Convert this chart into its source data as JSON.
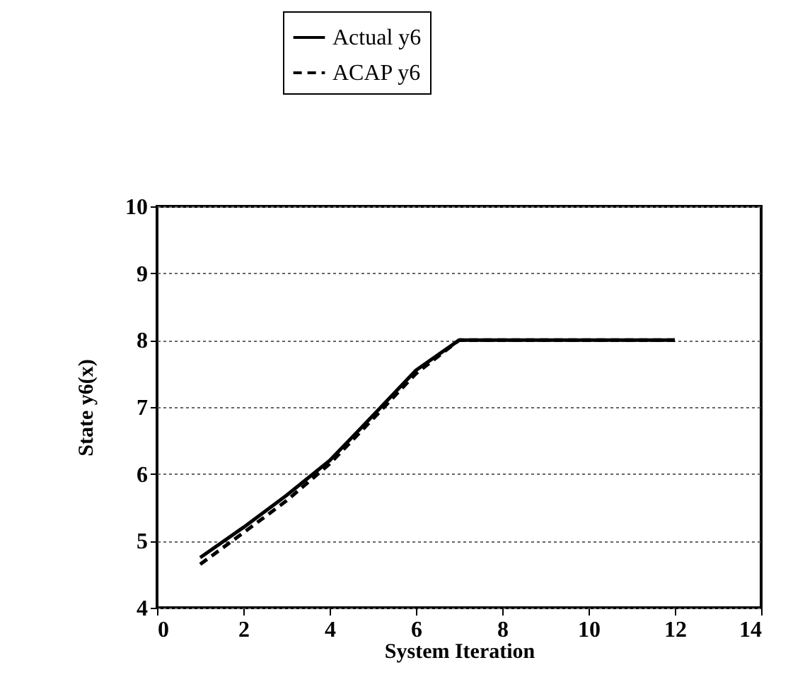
{
  "chart_data": {
    "type": "line",
    "xlabel": "System Iteration",
    "ylabel": "State y6(x)",
    "x": [
      1,
      2,
      3,
      4,
      5,
      6,
      7,
      8,
      9,
      10,
      11,
      12
    ],
    "series": [
      {
        "name": "Actual y6",
        "color": "#000000",
        "line_style": "solid",
        "values": [
          4.75,
          5.2,
          5.68,
          6.2,
          6.87,
          7.55,
          8.0,
          8.0,
          8.0,
          8.0,
          8.0,
          8.0
        ]
      },
      {
        "name": "ACAP y6",
        "color": "#000000",
        "line_style": "dashed",
        "values": [
          4.65,
          5.12,
          5.6,
          6.15,
          6.82,
          7.5,
          8.0,
          8.0,
          8.0,
          8.0,
          8.0,
          8.0
        ]
      }
    ],
    "xlim": [
      0,
      14
    ],
    "xticks": [
      0,
      2,
      4,
      6,
      8,
      10,
      12,
      14
    ],
    "ylim": [
      4,
      10
    ],
    "yticks": [
      4,
      5,
      6,
      7,
      8,
      9,
      10
    ],
    "grid": "y",
    "legend": "top left"
  }
}
